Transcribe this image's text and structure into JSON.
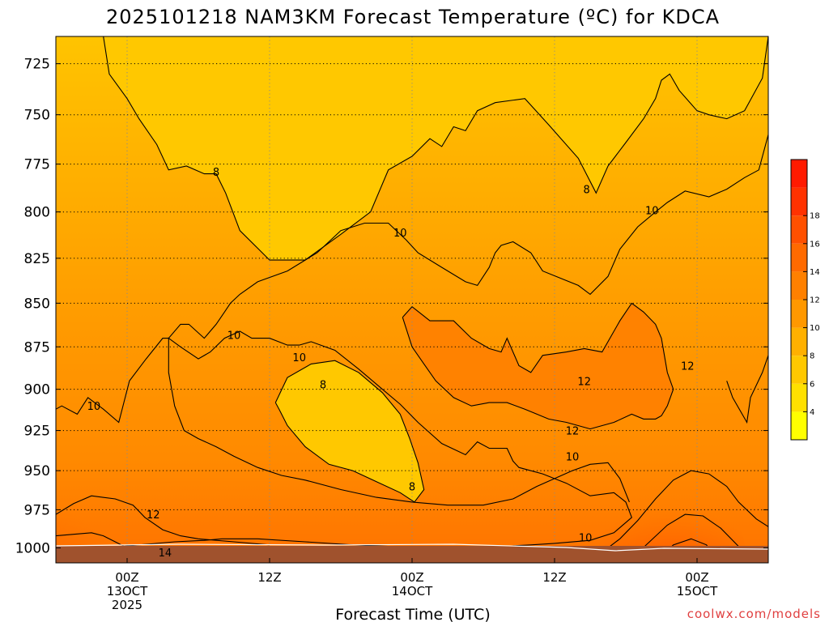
{
  "chart_data": {
    "type": "heatmap",
    "title": "2025101218 NAM3KM Forecast Temperature (ºC) for KDCA",
    "xlabel": "Forecast Time (UTC)",
    "ylabel": "",
    "credit": "coolwx.com/models",
    "y_ticks": [
      "725",
      "750",
      "775",
      "800",
      "825",
      "850",
      "875",
      "900",
      "925",
      "950",
      "975",
      "1000"
    ],
    "y_values": [
      725,
      750,
      775,
      800,
      825,
      850,
      875,
      900,
      925,
      950,
      975,
      1000
    ],
    "ylim": [
      712,
      1010
    ],
    "y_scale": "log pressure (hPa), increasing downward",
    "x_ticks": [
      {
        "hour": 6,
        "line1": "00Z",
        "line2": "13OCT",
        "line3": "2025"
      },
      {
        "hour": 18,
        "line1": "12Z",
        "line2": "",
        "line3": ""
      },
      {
        "hour": 30,
        "line1": "00Z",
        "line2": "14OCT",
        "line3": ""
      },
      {
        "hour": 42,
        "line1": "12Z",
        "line2": "",
        "line3": ""
      },
      {
        "hour": 54,
        "line1": "00Z",
        "line2": "15OCT",
        "line3": ""
      }
    ],
    "xlim": [
      0,
      60
    ],
    "grid": true,
    "colorbar": {
      "labels": [
        "4",
        "6",
        "8",
        "10",
        "12",
        "14",
        "16",
        "18"
      ],
      "levels": [
        2,
        4,
        6,
        8,
        10,
        12,
        14,
        16,
        18,
        20
      ],
      "colors": [
        "#ffff00",
        "#ffe000",
        "#ffc800",
        "#ffb000",
        "#ff9800",
        "#ff8000",
        "#ff6a00",
        "#ff5000",
        "#ff3200",
        "#ff1a00"
      ]
    },
    "contour_labels": [
      {
        "text": "8",
        "hour": 13.5,
        "p": 779
      },
      {
        "text": "8",
        "hour": 44.7,
        "p": 788
      },
      {
        "text": "10",
        "hour": 29.0,
        "p": 811
      },
      {
        "text": "10",
        "hour": 50.2,
        "p": 799
      },
      {
        "text": "10",
        "hour": 15.0,
        "p": 868
      },
      {
        "text": "10",
        "hour": 20.5,
        "p": 881
      },
      {
        "text": "10",
        "hour": 3.2,
        "p": 910
      },
      {
        "text": "8",
        "hour": 22.5,
        "p": 897
      },
      {
        "text": "12",
        "hour": 44.5,
        "p": 895
      },
      {
        "text": "12",
        "hour": 53.2,
        "p": 886
      },
      {
        "text": "12",
        "hour": 43.5,
        "p": 925
      },
      {
        "text": "10",
        "hour": 43.5,
        "p": 941
      },
      {
        "text": "8",
        "hour": 30.0,
        "p": 960
      },
      {
        "text": "12",
        "hour": 8.2,
        "p": 978
      },
      {
        "text": "14",
        "hour": 9.2,
        "p": 1003
      },
      {
        "text": "10",
        "hour": 44.6,
        "p": 993
      }
    ],
    "contours": [
      {
        "level": 8,
        "hour": [
          4.0,
          4.5,
          6.0,
          7.0,
          8.5,
          9.5,
          11.0,
          12.5,
          13.5,
          14.3,
          15.5,
          18.0,
          21.0,
          24.0,
          26.5,
          28.0,
          30.0,
          31.5,
          32.5,
          33.5,
          34.5,
          35.5,
          37.0,
          39.5,
          41.5,
          44.0,
          45.5,
          46.5,
          48.0,
          49.5,
          50.5,
          51.0,
          51.7,
          52.5,
          54.0,
          55.0,
          56.5,
          58.0,
          59.5,
          60.0
        ],
        "p": [
          712,
          730,
          742,
          752,
          765,
          778,
          776,
          780,
          780,
          790,
          810,
          826,
          826,
          812,
          800,
          778,
          771,
          762,
          766,
          756,
          758,
          748,
          744,
          742,
          755,
          772,
          790,
          776,
          764,
          752,
          742,
          733,
          730,
          738,
          748,
          750,
          752,
          748,
          732,
          712
        ]
      },
      {
        "level": 8,
        "hour": [
          18.5,
          19.5,
          21.5,
          23.5,
          25.5,
          27.5,
          29.0,
          29.8,
          30.5,
          31.0,
          30.2,
          29.0,
          27.0,
          25.0,
          23.0,
          21.0,
          19.5,
          18.8,
          18.5
        ],
        "p": [
          908,
          893,
          885,
          883,
          890,
          902,
          915,
          930,
          945,
          962,
          970,
          964,
          957,
          950,
          946,
          935,
          922,
          912,
          908
        ]
      },
      {
        "level": 10,
        "hour": [
          0.0,
          0.5,
          1.8,
          2.7,
          4.0,
          5.3,
          6.2,
          7.6,
          9.0,
          9.5,
          10.5,
          11.2,
          12.5,
          13.5,
          14.2,
          14.7,
          15.5,
          17.0,
          19.5,
          22.0,
          24.0,
          26.0,
          28.0,
          29.5,
          30.5,
          32.5,
          34.5,
          35.5,
          36.5,
          37.0,
          37.5,
          38.5,
          40.0,
          41.0,
          42.5,
          44.0,
          45.0,
          46.5,
          47.5,
          49.0,
          50.5,
          51.5,
          53.0,
          55.0,
          56.5,
          58.0,
          59.2,
          60.0
        ],
        "p": [
          912,
          910,
          915,
          905,
          912,
          920,
          895,
          882,
          870,
          870,
          862,
          862,
          870,
          862,
          855,
          850,
          845,
          838,
          832,
          822,
          810,
          806,
          806,
          815,
          822,
          830,
          838,
          840,
          830,
          822,
          818,
          816,
          822,
          832,
          836,
          840,
          845,
          835,
          820,
          808,
          800,
          795,
          789,
          792,
          788,
          782,
          778,
          760
        ]
      },
      {
        "level": 10,
        "hour": [
          0.0,
          2.0,
          4.0,
          7.0,
          10.0,
          12.5,
          14.0,
          17.0,
          21.0,
          25.0,
          28.0,
          31.0,
          34.0,
          37.5,
          40.0,
          42.0,
          45.0,
          47.0,
          48.5,
          48.0,
          47.0,
          45.0,
          43.0,
          41.0,
          39.0,
          38.5,
          38.0,
          36.5,
          35.5,
          34.5,
          32.5,
          30.5,
          29.0,
          27.5,
          25.5,
          23.5,
          21.5,
          20.5,
          19.5,
          18.0,
          16.5,
          15.5,
          14.2,
          13.0,
          12.0,
          10.5,
          9.5,
          9.5,
          10.0,
          10.8,
          12.0,
          13.5,
          15.0,
          17.0,
          19.0,
          21.0,
          24.0,
          27.0,
          30.0,
          33.0,
          36.0,
          38.5,
          40.5,
          42.0,
          43.5,
          45.0,
          46.5,
          47.5,
          48.3
        ],
        "p": [
          1006,
          1004,
          1000,
          998,
          996,
          995,
          994,
          994,
          996,
          998,
          999,
          999,
          999,
          999,
          998,
          997,
          995,
          990,
          980,
          970,
          964,
          966,
          958,
          952,
          948,
          944,
          936,
          936,
          932,
          940,
          933,
          920,
          909,
          900,
          888,
          877,
          872,
          874,
          874,
          870,
          870,
          866,
          870,
          878,
          882,
          875,
          870,
          890,
          910,
          925,
          930,
          935,
          941,
          948,
          953,
          956,
          962,
          967,
          970,
          972,
          972,
          968,
          960,
          955,
          950,
          946,
          945,
          955,
          970
        ]
      },
      {
        "level": 10,
        "hour": [
          56.5,
          57.0,
          58.2,
          58.5,
          59.5,
          60.0
        ],
        "p": [
          895,
          905,
          920,
          905,
          890,
          880
        ]
      },
      {
        "level": 12,
        "hour": [
          29.2,
          30.0,
          31.5,
          33.5,
          35.0,
          36.5,
          37.5,
          38.0,
          39.0,
          40.0,
          41.0,
          43.0,
          44.5,
          46.0,
          47.5,
          48.5,
          49.5,
          50.5,
          51.0,
          51.5,
          52.0,
          51.5,
          51.0,
          50.5,
          49.5,
          48.5,
          47.0,
          45.0,
          43.0,
          41.5,
          39.5,
          38.0,
          36.5,
          35.0,
          33.5,
          32.0,
          31.0,
          30.0,
          29.2
        ],
        "p": [
          858,
          852,
          860,
          860,
          870,
          876,
          878,
          870,
          886,
          890,
          880,
          878,
          876,
          878,
          860,
          850,
          855,
          862,
          870,
          890,
          900,
          910,
          916,
          918,
          918,
          915,
          920,
          924,
          920,
          918,
          912,
          908,
          908,
          910,
          905,
          895,
          885,
          875,
          858
        ]
      },
      {
        "level": 12,
        "hour": [
          0.0,
          1.5,
          3.0,
          5.0,
          6.5,
          7.5,
          9.0,
          10.5,
          12.0,
          15.0,
          18.0
        ],
        "p": [
          978,
          971,
          966,
          968,
          972,
          980,
          988,
          992,
          994,
          996,
          998
        ]
      },
      {
        "level": 12,
        "hour": [
          46.0,
          47.5,
          49.0,
          50.5,
          52.0,
          53.5,
          55.0,
          56.5,
          57.5,
          59.0,
          60.0
        ],
        "p": [
          1003,
          994,
          982,
          968,
          956,
          950,
          952,
          960,
          970,
          981,
          986
        ]
      },
      {
        "level": 14,
        "hour": [
          0.0,
          1.5,
          3.0,
          4.0,
          5.0,
          6.0,
          7.0,
          8.5,
          10.0,
          12.0
        ],
        "p": [
          992,
          991,
          990,
          992,
          996,
          1000,
          1003,
          1005,
          1006,
          1006
        ]
      },
      {
        "level": 14,
        "hour": [
          48.5,
          50.0,
          51.5,
          53.0,
          54.5,
          56.0,
          57.5,
          58.5
        ],
        "p": [
          1007,
          996,
          985,
          978,
          979,
          987,
          999,
          1007
        ]
      },
      {
        "level": 16,
        "hour": [
          50.8,
          52.0,
          53.5,
          54.8,
          55.5
        ],
        "p": [
          1007,
          998,
          994,
          998,
          1007
        ]
      }
    ]
  }
}
